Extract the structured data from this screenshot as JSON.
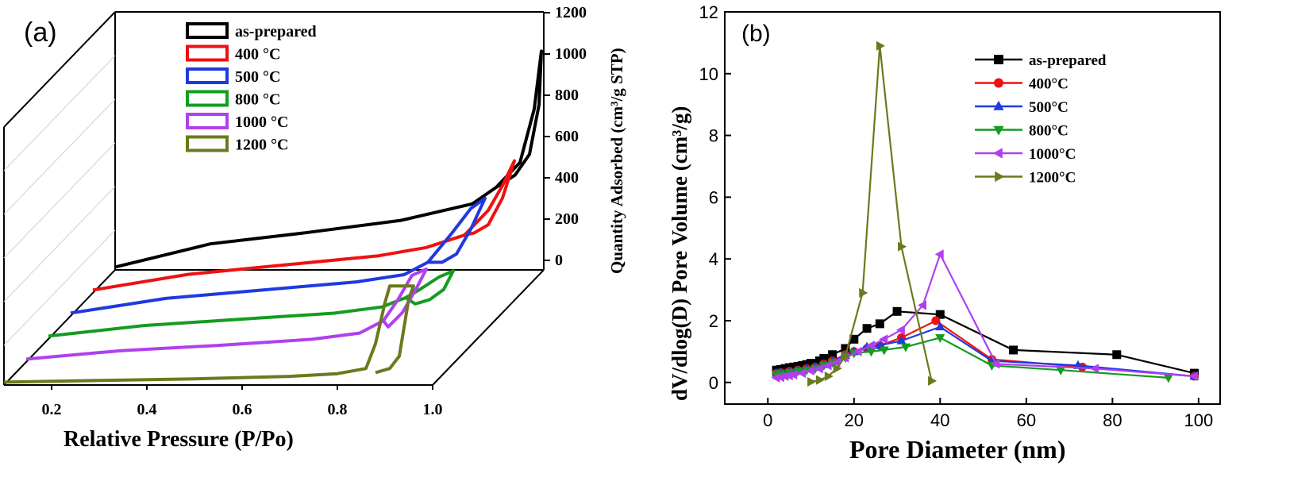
{
  "chart_data": [
    {
      "panel": "(a)",
      "type": "line",
      "xlabel": "Relative Pressure (P/Po)",
      "ylabel": "Quantity Adsorbed (cm³/g STP)",
      "xticks": [
        "0.2",
        "0.4",
        "0.6",
        "0.8",
        "1.0"
      ],
      "xlim": [
        0.1,
        1.0
      ],
      "yticks": [
        0,
        200,
        400,
        600,
        800,
        1000,
        1200
      ],
      "ylim": [
        0,
        1200
      ],
      "legend_position": "top-left",
      "series": [
        {
          "name": "as-prepared",
          "color": "#000000",
          "adsorption": [
            [
              0.1,
              14
            ],
            [
              0.3,
              126
            ],
            [
              0.5,
              180
            ],
            [
              0.7,
              240
            ],
            [
              0.85,
              320
            ],
            [
              0.9,
              400
            ],
            [
              0.95,
              520
            ],
            [
              0.98,
              780
            ],
            [
              0.995,
              1060
            ]
          ],
          "desorption": [
            [
              0.995,
              1060
            ],
            [
              0.99,
              800
            ],
            [
              0.97,
              560
            ],
            [
              0.94,
              460
            ],
            [
              0.9,
              400
            ]
          ]
        },
        {
          "name": "400 °C",
          "color": "#ee1111",
          "adsorption": [
            [
              0.1,
              14
            ],
            [
              0.3,
              90
            ],
            [
              0.5,
              135
            ],
            [
              0.7,
              180
            ],
            [
              0.8,
              220
            ],
            [
              0.88,
              280
            ],
            [
              0.93,
              400
            ],
            [
              0.96,
              520
            ],
            [
              0.985,
              640
            ]
          ],
          "desorption": [
            [
              0.985,
              640
            ],
            [
              0.96,
              460
            ],
            [
              0.93,
              330
            ],
            [
              0.9,
              290
            ],
            [
              0.88,
              280
            ]
          ]
        },
        {
          "name": "500 °C",
          "color": "#1f39e0",
          "adsorption": [
            [
              0.1,
              14
            ],
            [
              0.3,
              85
            ],
            [
              0.5,
              125
            ],
            [
              0.7,
              165
            ],
            [
              0.8,
              200
            ],
            [
              0.85,
              260
            ],
            [
              0.9,
              400
            ],
            [
              0.94,
              520
            ],
            [
              0.97,
              570
            ]
          ],
          "desorption": [
            [
              0.97,
              570
            ],
            [
              0.94,
              420
            ],
            [
              0.91,
              300
            ],
            [
              0.88,
              260
            ],
            [
              0.85,
              260
            ]
          ]
        },
        {
          "name": "800 °C",
          "color": "#149c20",
          "adsorption": [
            [
              0.1,
              14
            ],
            [
              0.3,
              65
            ],
            [
              0.5,
              95
            ],
            [
              0.7,
              125
            ],
            [
              0.8,
              155
            ],
            [
              0.85,
              200
            ],
            [
              0.88,
              240
            ],
            [
              0.92,
              300
            ],
            [
              0.95,
              330
            ]
          ],
          "desorption": [
            [
              0.95,
              330
            ],
            [
              0.93,
              240
            ],
            [
              0.9,
              190
            ],
            [
              0.87,
              170
            ],
            [
              0.85,
              200
            ]
          ]
        },
        {
          "name": "1000 °C",
          "color": "#b040ee",
          "adsorption": [
            [
              0.1,
              14
            ],
            [
              0.3,
              55
            ],
            [
              0.5,
              80
            ],
            [
              0.7,
              110
            ],
            [
              0.8,
              140
            ],
            [
              0.85,
              200
            ],
            [
              0.88,
              300
            ],
            [
              0.91,
              420
            ],
            [
              0.94,
              450
            ]
          ],
          "desorption": [
            [
              0.94,
              450
            ],
            [
              0.92,
              360
            ],
            [
              0.89,
              240
            ],
            [
              0.86,
              170
            ],
            [
              0.85,
              200
            ]
          ]
        },
        {
          "name": "1200 °C",
          "color": "#6a7a1c",
          "adsorption": [
            [
              0.1,
              14
            ],
            [
              0.3,
              22
            ],
            [
              0.5,
              30
            ],
            [
              0.7,
              42
            ],
            [
              0.8,
              55
            ],
            [
              0.86,
              80
            ],
            [
              0.88,
              200
            ],
            [
              0.9,
              400
            ],
            [
              0.91,
              480
            ],
            [
              0.96,
              480
            ]
          ],
          "desorption": [
            [
              0.96,
              480
            ],
            [
              0.95,
              420
            ],
            [
              0.94,
              280
            ],
            [
              0.93,
              140
            ],
            [
              0.91,
              80
            ],
            [
              0.88,
              60
            ]
          ]
        }
      ]
    },
    {
      "panel": "(b)",
      "type": "line",
      "xlabel": "Pore Diameter (nm)",
      "ylabel": "dV/dlog(D) Pore Volume (cm³/g)",
      "xticks": [
        0,
        20,
        40,
        60,
        80,
        100
      ],
      "xlim": [
        -10,
        105
      ],
      "yticks": [
        0,
        2,
        4,
        6,
        8,
        10,
        12
      ],
      "ylim": [
        -0.7,
        12
      ],
      "legend_position": "top-right",
      "series": [
        {
          "name": "as-prepared",
          "color": "#000000",
          "marker": "square",
          "x": [
            2,
            3,
            4,
            5,
            6,
            7,
            8,
            9,
            10,
            12,
            13,
            15,
            18,
            20,
            23,
            26,
            30,
            40,
            57,
            81,
            99
          ],
          "y": [
            0.4,
            0.42,
            0.45,
            0.48,
            0.5,
            0.52,
            0.55,
            0.58,
            0.62,
            0.7,
            0.78,
            0.9,
            1.1,
            1.4,
            1.75,
            1.9,
            2.3,
            2.2,
            1.05,
            0.9,
            0.3
          ]
        },
        {
          "name": "400°C",
          "color": "#ee1111",
          "marker": "circle",
          "x": [
            2,
            3,
            5,
            7,
            9,
            11,
            13,
            15,
            18,
            20,
            23,
            26,
            31,
            39,
            52,
            73,
            99
          ],
          "y": [
            0.3,
            0.32,
            0.36,
            0.4,
            0.45,
            0.5,
            0.6,
            0.7,
            0.9,
            1.0,
            1.1,
            1.2,
            1.45,
            2.0,
            0.75,
            0.5,
            0.2
          ]
        },
        {
          "name": "500°C",
          "color": "#1f39e0",
          "marker": "triangle-up",
          "x": [
            2,
            3,
            5,
            7,
            9,
            11,
            13,
            15,
            18,
            20,
            23,
            26,
            31,
            40,
            52,
            72,
            99
          ],
          "y": [
            0.3,
            0.32,
            0.35,
            0.4,
            0.45,
            0.5,
            0.58,
            0.68,
            0.88,
            1.0,
            1.15,
            1.2,
            1.35,
            1.8,
            0.7,
            0.55,
            0.2
          ]
        },
        {
          "name": "800°C",
          "color": "#149c20",
          "marker": "triangle-down",
          "x": [
            2,
            3,
            5,
            7,
            9,
            11,
            13,
            15,
            18,
            20,
            24,
            27,
            32,
            40,
            52,
            68,
            93
          ],
          "y": [
            0.25,
            0.28,
            0.32,
            0.36,
            0.4,
            0.45,
            0.55,
            0.65,
            0.8,
            0.95,
            1.0,
            1.05,
            1.15,
            1.45,
            0.55,
            0.4,
            0.15
          ]
        },
        {
          "name": "1000°C",
          "color": "#b040ee",
          "marker": "triangle-left",
          "x": [
            2,
            3,
            4,
            5,
            6,
            8,
            10,
            12,
            14,
            16,
            18,
            21,
            24,
            27,
            31,
            36,
            40,
            53,
            76,
            99
          ],
          "y": [
            0.15,
            0.17,
            0.2,
            0.22,
            0.25,
            0.3,
            0.38,
            0.45,
            0.55,
            0.65,
            0.8,
            1.0,
            1.2,
            1.4,
            1.7,
            2.5,
            4.15,
            0.6,
            0.45,
            0.2
          ]
        },
        {
          "name": "1200°C",
          "color": "#6a7a1c",
          "marker": "triangle-right",
          "x": [
            10,
            12,
            14,
            16,
            18,
            22,
            26,
            31,
            38
          ],
          "y": [
            0.02,
            0.08,
            0.2,
            0.45,
            0.85,
            2.9,
            10.9,
            4.4,
            0.05
          ]
        }
      ]
    }
  ]
}
